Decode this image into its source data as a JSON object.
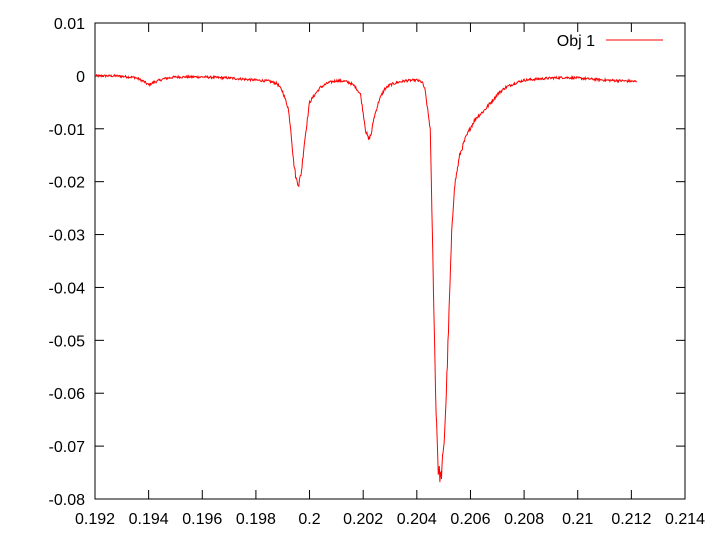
{
  "chart_data": {
    "type": "line",
    "title": "",
    "xlabel": "",
    "ylabel": "",
    "xlim": [
      0.192,
      0.214
    ],
    "ylim": [
      -0.08,
      0.01
    ],
    "x_ticks": [
      0.192,
      0.194,
      0.196,
      0.198,
      0.2,
      0.202,
      0.204,
      0.206,
      0.208,
      0.21,
      0.212,
      0.214
    ],
    "x_tick_labels": [
      "0.192",
      "0.194",
      "0.196",
      "0.198",
      "0.2",
      "0.202",
      "0.204",
      "0.206",
      "0.208",
      "0.21",
      "0.212",
      "0.214"
    ],
    "y_ticks": [
      0.01,
      0,
      -0.01,
      -0.02,
      -0.03,
      -0.04,
      -0.05,
      -0.06,
      -0.07,
      -0.08
    ],
    "y_tick_labels": [
      "0.01",
      "0",
      "-0.01",
      "-0.02",
      "-0.03",
      "-0.04",
      "-0.05",
      "-0.06",
      "-0.07",
      "-0.08"
    ],
    "grid": false,
    "legend_position": "top-right",
    "series": [
      {
        "name": "Obj 1",
        "color": "#ff0000",
        "x": [
          0.192,
          0.1928,
          0.1935,
          0.1938,
          0.194,
          0.1942,
          0.1946,
          0.195,
          0.196,
          0.197,
          0.198,
          0.1985,
          0.1988,
          0.199,
          0.1992,
          0.1993,
          0.1994,
          0.1995,
          0.1996,
          0.1997,
          0.1998,
          0.1999,
          0.2,
          0.2002,
          0.2004,
          0.2007,
          0.201,
          0.2013,
          0.2015,
          0.2017,
          0.2019,
          0.202,
          0.2021,
          0.2022,
          0.2023,
          0.2024,
          0.2026,
          0.2028,
          0.203,
          0.2033,
          0.2036,
          0.204,
          0.2042,
          0.2043,
          0.2045,
          0.2046,
          0.2047,
          0.2048,
          0.2049,
          0.205,
          0.2051,
          0.2052,
          0.2053,
          0.2054,
          0.2056,
          0.2058,
          0.206,
          0.2062,
          0.2065,
          0.2068,
          0.207,
          0.2073,
          0.2077,
          0.208,
          0.2085,
          0.209,
          0.2095,
          0.21,
          0.2105,
          0.211,
          0.2115,
          0.212,
          0.2122
        ],
        "y": [
          0.0,
          0.0,
          -0.0003,
          -0.001,
          -0.0017,
          -0.0012,
          -0.0005,
          -0.0002,
          -0.0002,
          -0.0004,
          -0.0008,
          -0.001,
          -0.0015,
          -0.003,
          -0.006,
          -0.01,
          -0.016,
          -0.0195,
          -0.0205,
          -0.018,
          -0.013,
          -0.009,
          -0.005,
          -0.0035,
          -0.0022,
          -0.0013,
          -0.0009,
          -0.001,
          -0.0013,
          -0.002,
          -0.0035,
          -0.007,
          -0.0105,
          -0.012,
          -0.011,
          -0.008,
          -0.0045,
          -0.0025,
          -0.0017,
          -0.0012,
          -0.0009,
          -0.0008,
          -0.0012,
          -0.0025,
          -0.01,
          -0.035,
          -0.06,
          -0.0745,
          -0.076,
          -0.071,
          -0.06,
          -0.045,
          -0.03,
          -0.021,
          -0.015,
          -0.012,
          -0.0098,
          -0.008,
          -0.0066,
          -0.0048,
          -0.0035,
          -0.0022,
          -0.0013,
          -0.0008,
          -0.0006,
          -0.0004,
          -0.0003,
          -0.0004,
          -0.0006,
          -0.0008,
          -0.0009,
          -0.001,
          -0.0011
        ]
      }
    ]
  }
}
